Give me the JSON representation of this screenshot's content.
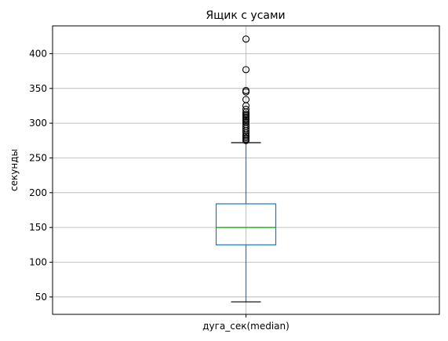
{
  "chart_data": {
    "type": "box",
    "title": "Ящик с усами",
    "xlabel": "",
    "ylabel": "секунды",
    "categories": [
      "дуга_сек(median)"
    ],
    "ylim": [
      25,
      440
    ],
    "yticks": [
      50,
      100,
      150,
      200,
      250,
      300,
      350,
      400
    ],
    "grid": true,
    "box": {
      "whisker_low": 43,
      "q1": 125,
      "median": 150,
      "q3": 184,
      "whisker_high": 272
    },
    "outliers": [
      275,
      277,
      279,
      281,
      283,
      286,
      289,
      292,
      295,
      298,
      301,
      303,
      305,
      307,
      309,
      311,
      313,
      316,
      320,
      325,
      334,
      345,
      347,
      377,
      421
    ]
  },
  "colors": {
    "box": "#1f77b4",
    "median": "#2ca02c",
    "grid": "#b0b0b0",
    "whisker_cap": "#000000",
    "outlier": "#000000"
  }
}
